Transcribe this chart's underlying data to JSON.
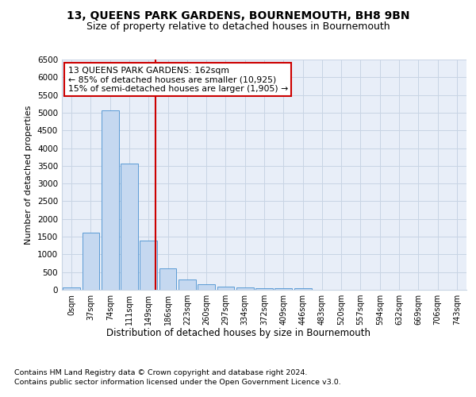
{
  "title": "13, QUEENS PARK GARDENS, BOURNEMOUTH, BH8 9BN",
  "subtitle": "Size of property relative to detached houses in Bournemouth",
  "xlabel": "Distribution of detached houses by size in Bournemouth",
  "ylabel": "Number of detached properties",
  "bin_labels": [
    "0sqm",
    "37sqm",
    "74sqm",
    "111sqm",
    "149sqm",
    "186sqm",
    "223sqm",
    "260sqm",
    "297sqm",
    "334sqm",
    "372sqm",
    "409sqm",
    "446sqm",
    "483sqm",
    "520sqm",
    "557sqm",
    "594sqm",
    "632sqm",
    "669sqm",
    "706sqm",
    "743sqm"
  ],
  "bar_values": [
    75,
    1625,
    5075,
    3575,
    1400,
    600,
    300,
    150,
    100,
    75,
    50,
    50,
    50,
    0,
    0,
    0,
    0,
    0,
    0,
    0,
    0
  ],
  "bar_color": "#c5d8f0",
  "bar_edge_color": "#5b9bd5",
  "grid_color": "#c8d4e4",
  "background_color": "#e8eef8",
  "vline_color": "#cc0000",
  "annotation_text": "13 QUEENS PARK GARDENS: 162sqm\n← 85% of detached houses are smaller (10,925)\n15% of semi-detached houses are larger (1,905) →",
  "annotation_box_color": "#ffffff",
  "annotation_box_edge_color": "#cc0000",
  "ylim": [
    0,
    6500
  ],
  "yticks": [
    0,
    500,
    1000,
    1500,
    2000,
    2500,
    3000,
    3500,
    4000,
    4500,
    5000,
    5500,
    6000,
    6500
  ],
  "footer_line1": "Contains HM Land Registry data © Crown copyright and database right 2024.",
  "footer_line2": "Contains public sector information licensed under the Open Government Licence v3.0.",
  "title_fontsize": 10,
  "subtitle_fontsize": 9,
  "annotation_fontsize": 7.8,
  "footer_fontsize": 6.8,
  "ylabel_fontsize": 8,
  "xlabel_fontsize": 8.5,
  "ytick_fontsize": 7.5,
  "xtick_fontsize": 7
}
